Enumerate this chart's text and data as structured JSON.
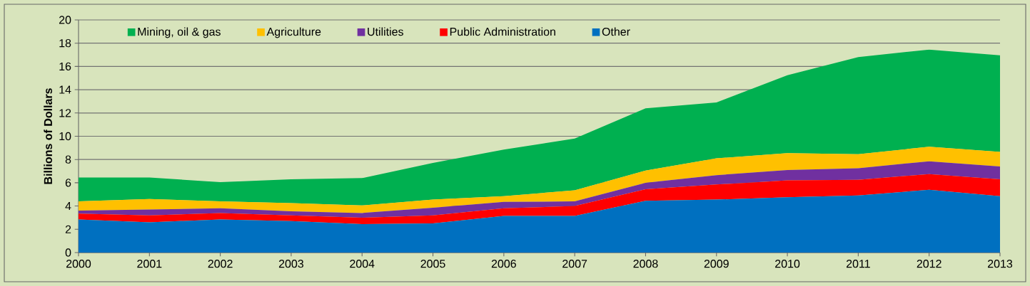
{
  "chart_data": {
    "type": "area",
    "stacked": true,
    "ylabel": "Billions of Dollars",
    "x": [
      2000,
      2001,
      2002,
      2003,
      2004,
      2005,
      2006,
      2007,
      2008,
      2009,
      2010,
      2011,
      2012,
      2013
    ],
    "series": [
      {
        "name": "Other",
        "color": "#0070c0",
        "values": [
          2.85,
          2.6,
          2.85,
          2.7,
          2.45,
          2.5,
          3.15,
          3.15,
          4.45,
          4.55,
          4.75,
          4.9,
          5.4,
          4.85
        ]
      },
      {
        "name": "Public Administration",
        "color": "#ff0000",
        "values": [
          0.5,
          0.6,
          0.55,
          0.5,
          0.55,
          0.7,
          0.65,
          0.85,
          1.0,
          1.3,
          1.45,
          1.35,
          1.35,
          1.45
        ]
      },
      {
        "name": "Utilities",
        "color": "#7030a0",
        "values": [
          0.25,
          0.5,
          0.4,
          0.35,
          0.4,
          0.65,
          0.55,
          0.4,
          0.55,
          0.8,
          0.9,
          1.0,
          1.1,
          1.1
        ]
      },
      {
        "name": "Agriculture",
        "color": "#ffc000",
        "values": [
          0.8,
          0.9,
          0.6,
          0.7,
          0.65,
          0.7,
          0.5,
          0.95,
          1.05,
          1.45,
          1.45,
          1.2,
          1.25,
          1.25
        ]
      },
      {
        "name": "Mining, oil & gas",
        "color": "#00b050",
        "values": [
          2.05,
          1.85,
          1.65,
          2.05,
          2.35,
          3.15,
          4.0,
          4.45,
          5.35,
          4.8,
          6.7,
          8.35,
          8.35,
          8.3
        ]
      }
    ],
    "xlim": [
      2000,
      2013
    ],
    "xticks": [
      2000,
      2001,
      2002,
      2003,
      2004,
      2005,
      2006,
      2007,
      2008,
      2009,
      2010,
      2011,
      2012,
      2013
    ],
    "ylim": [
      0,
      20
    ],
    "yticks": [
      0,
      2,
      4,
      6,
      8,
      10,
      12,
      14,
      16,
      18,
      20
    ],
    "grid": "y",
    "legend": "top"
  }
}
